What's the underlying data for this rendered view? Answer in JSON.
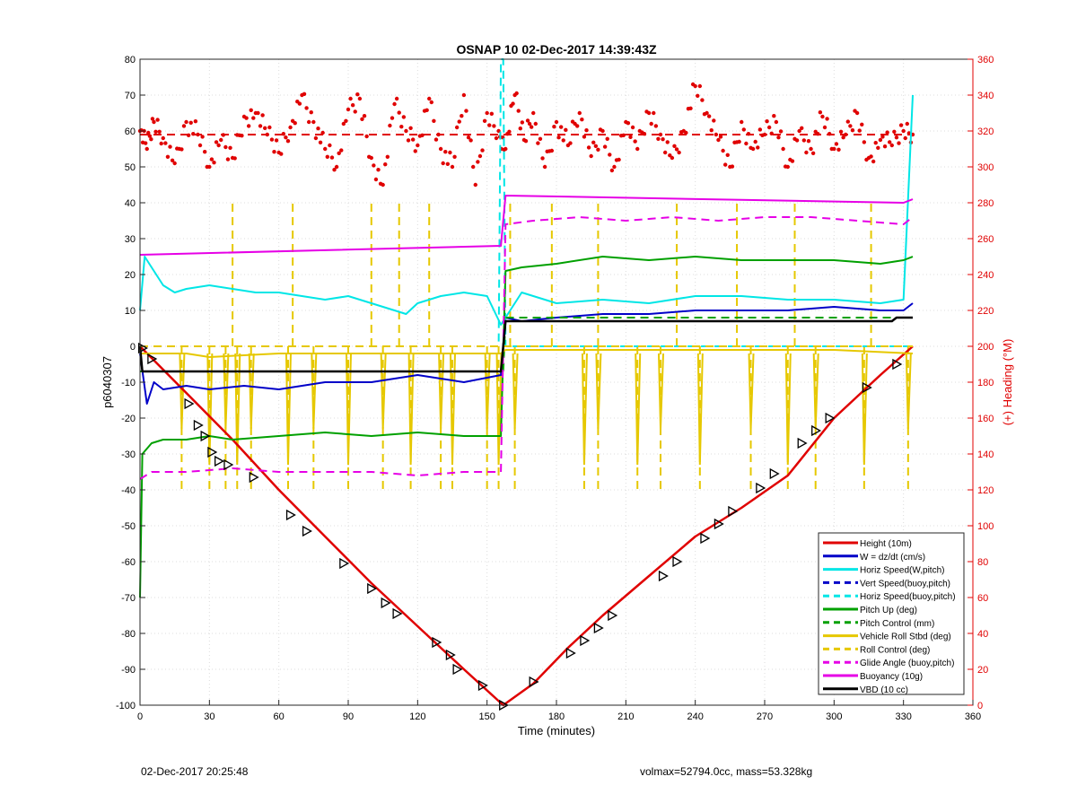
{
  "chart_data": {
    "type": "line",
    "title": "OSNAP 10 02-Dec-2017 14:39:43Z",
    "xlabel": "Time (minutes)",
    "ylabel": "p6040307",
    "y2label": "(+) Heading (°M)",
    "xlim": [
      0,
      360
    ],
    "ylim": [
      -100,
      80
    ],
    "y2lim": [
      0,
      360
    ],
    "xticks": [
      0,
      30,
      60,
      90,
      120,
      150,
      180,
      210,
      240,
      270,
      300,
      330,
      360
    ],
    "yticks": [
      -100,
      -90,
      -80,
      -70,
      -60,
      -50,
      -40,
      -30,
      -20,
      -10,
      0,
      10,
      20,
      30,
      40,
      50,
      60,
      70,
      80
    ],
    "y2ticks": [
      0,
      20,
      40,
      60,
      80,
      100,
      120,
      140,
      160,
      180,
      200,
      220,
      240,
      260,
      280,
      300,
      320,
      340,
      360
    ],
    "grid": true,
    "legend_location": "bottom-right",
    "series": [
      {
        "name": "Height (10m)",
        "color": "#e00000",
        "style": "solid",
        "x": [
          0,
          20,
          40,
          60,
          80,
          100,
          120,
          140,
          157,
          170,
          185,
          200,
          220,
          240,
          260,
          280,
          300,
          320,
          334
        ],
        "y": [
          0,
          -13,
          -26,
          -40,
          -53,
          -66,
          -78,
          -90,
          -100,
          -94,
          -84,
          -75,
          -64,
          -53,
          -45,
          -36,
          -20,
          -8,
          0
        ]
      },
      {
        "name": "W = dz/dt (cm/s)",
        "color": "#0000c8",
        "style": "solid",
        "x": [
          0,
          3,
          6,
          10,
          20,
          30,
          45,
          60,
          80,
          100,
          120,
          130,
          140,
          156,
          158,
          165,
          180,
          200,
          220,
          240,
          260,
          280,
          300,
          320,
          330,
          334
        ],
        "y": [
          -2,
          -16,
          -10,
          -12,
          -11,
          -12,
          -11,
          -12,
          -10,
          -10,
          -8,
          -9,
          -10,
          -8,
          8,
          7,
          8,
          9,
          9,
          10,
          10,
          10,
          11,
          10,
          10,
          12
        ]
      },
      {
        "name": "Horiz Speed(W,pitch)",
        "color": "#00e6e6",
        "style": "solid",
        "x": [
          0,
          2,
          5,
          10,
          15,
          20,
          30,
          40,
          50,
          60,
          70,
          80,
          90,
          100,
          110,
          115,
          120,
          130,
          140,
          150,
          156,
          158,
          165,
          180,
          200,
          220,
          240,
          260,
          280,
          300,
          320,
          330,
          334
        ],
        "y": [
          10,
          25,
          22,
          17,
          15,
          16,
          17,
          16,
          15,
          15,
          14,
          13,
          14,
          12,
          10,
          9,
          12,
          14,
          15,
          14,
          6,
          8,
          15,
          12,
          13,
          12,
          14,
          14,
          13,
          13,
          12,
          13,
          70
        ]
      },
      {
        "name": "Vert Speed(buoy,pitch)",
        "color": "#0000c8",
        "style": "dash",
        "x": [],
        "y": []
      },
      {
        "name": "Horiz Speed(buoy,pitch)",
        "color": "#00e6e6",
        "style": "dash",
        "x": [
          0,
          155,
          156,
          157,
          158,
          160,
          334
        ],
        "y": [
          0,
          0,
          80,
          80,
          0,
          0,
          0
        ]
      },
      {
        "name": "Pitch Up (deg)",
        "color": "#00a000",
        "style": "solid",
        "x": [
          0,
          1,
          5,
          10,
          20,
          30,
          40,
          60,
          80,
          100,
          120,
          140,
          156,
          158,
          165,
          180,
          200,
          220,
          240,
          260,
          280,
          300,
          320,
          330,
          334
        ],
        "y": [
          -70,
          -30,
          -27,
          -26,
          -26,
          -25,
          -26,
          -25,
          -24,
          -25,
          -24,
          -25,
          -25,
          21,
          22,
          23,
          25,
          24,
          25,
          24,
          24,
          24,
          23,
          24,
          25
        ]
      },
      {
        "name": "Pitch Control (mm)",
        "color": "#00a000",
        "style": "dash",
        "x": [
          0,
          157,
          158,
          334
        ],
        "y": [
          -7,
          -7,
          8,
          8
        ]
      },
      {
        "name": "Vehicle Roll Stbd (deg)",
        "color": "#e6c800",
        "style": "solid",
        "x": [
          0,
          10,
          20,
          30,
          60,
          90,
          120,
          150,
          156,
          158,
          180,
          210,
          240,
          270,
          300,
          334
        ],
        "y": [
          -2,
          -2,
          -2,
          -3,
          -2,
          -2,
          -2,
          -2,
          -2,
          -1,
          -1,
          -1,
          -1,
          -1,
          -1,
          -2
        ]
      },
      {
        "name": "Roll Control (deg)",
        "color": "#e6c800",
        "style": "dash",
        "x": [
          0,
          334
        ],
        "y": [
          0,
          0
        ]
      },
      {
        "name": "Glide Angle (buoy,pitch)",
        "color": "#e600e6",
        "style": "dash",
        "x": [
          0,
          5,
          20,
          40,
          60,
          80,
          100,
          120,
          140,
          156,
          158,
          170,
          190,
          210,
          230,
          250,
          270,
          290,
          310,
          330,
          334
        ],
        "y": [
          -37,
          -35,
          -35,
          -34,
          -35,
          -35,
          -35,
          -36,
          -35,
          -35,
          34,
          35,
          36,
          35,
          36,
          35,
          36,
          36,
          35,
          34,
          36
        ]
      },
      {
        "name": "Buoyancy (10g)",
        "color": "#e600e6",
        "style": "solid",
        "x": [
          0,
          156,
          158,
          330,
          334
        ],
        "y": [
          25.5,
          28,
          42,
          40,
          41
        ]
      },
      {
        "name": "VBD (10 cc)",
        "color": "#000000",
        "style": "solid",
        "x": [
          0,
          1,
          156,
          158,
          325,
          327,
          334
        ],
        "y": [
          0,
          -7,
          -7,
          7,
          7,
          8,
          8
        ]
      }
    ],
    "heading": {
      "label": "Heading (°M)",
      "color": "#e00000",
      "mean_line": 318,
      "x": [
        0,
        3,
        6,
        10,
        15,
        20,
        25,
        30,
        35,
        40,
        45,
        50,
        55,
        60,
        65,
        70,
        75,
        80,
        85,
        90,
        95,
        100,
        105,
        110,
        115,
        120,
        125,
        130,
        135,
        140,
        145,
        150,
        155,
        158,
        162,
        166,
        170,
        175,
        180,
        185,
        190,
        195,
        200,
        205,
        210,
        215,
        220,
        225,
        230,
        235,
        240,
        245,
        250,
        255,
        260,
        265,
        270,
        275,
        280,
        285,
        290,
        295,
        300,
        305,
        310,
        315,
        320,
        325,
        330,
        334
      ],
      "y": [
        320,
        310,
        325,
        316,
        302,
        325,
        318,
        300,
        315,
        305,
        328,
        330,
        318,
        308,
        322,
        340,
        325,
        310,
        300,
        332,
        338,
        305,
        290,
        335,
        320,
        312,
        338,
        310,
        300,
        340,
        290,
        330,
        320,
        310,
        340,
        315,
        330,
        300,
        325,
        312,
        330,
        306,
        320,
        300,
        325,
        310,
        330,
        318,
        305,
        320,
        345,
        330,
        315,
        300,
        325,
        310,
        318,
        325,
        300,
        320,
        310,
        328,
        310,
        318,
        330,
        305,
        315,
        312,
        320,
        318
      ]
    },
    "markers": {
      "x": [
        1,
        5,
        21,
        25,
        28,
        31,
        34,
        38,
        49,
        65,
        72,
        88,
        100,
        106,
        111,
        128,
        134,
        137,
        148,
        157,
        170,
        186,
        192,
        198,
        204,
        226,
        232,
        244,
        250,
        256,
        268,
        274,
        286,
        292,
        298,
        314,
        327
      ],
      "y": [
        -0.5,
        -3.5,
        -16,
        -22,
        -25,
        -29.5,
        -32,
        -33,
        -36.5,
        -47,
        -51.5,
        -60.5,
        -67.5,
        -71.5,
        -74.5,
        -82.5,
        -86,
        -90,
        -94.5,
        -100,
        -93.5,
        -85.5,
        -82,
        -78.5,
        -75,
        -64,
        -60,
        -53.5,
        -49.5,
        -46,
        -39.5,
        -35.5,
        -27,
        -23.5,
        -20,
        -11.5,
        -5
      ]
    },
    "roll_spikes": {
      "up": [
        40,
        66,
        100,
        112,
        125,
        160,
        178,
        198,
        232,
        258,
        283,
        316
      ],
      "down": [
        18,
        30,
        37,
        42,
        48,
        64,
        75,
        90,
        105,
        117,
        130,
        135,
        150,
        155,
        162,
        192,
        198,
        215,
        225,
        242,
        264,
        280,
        292,
        313,
        332
      ]
    },
    "legend": [
      "Height (10m)",
      "W = dz/dt (cm/s)",
      "Horiz Speed(W,pitch)",
      "Vert Speed(buoy,pitch)",
      "Horiz Speed(buoy,pitch)",
      "Pitch Up (deg)",
      "Pitch Control (mm)",
      "Vehicle Roll Stbd (deg)",
      "Roll Control (deg)",
      "Glide Angle (buoy,pitch)",
      "Buoyancy (10g)",
      "VBD (10 cc)"
    ]
  },
  "footer": {
    "left": "02-Dec-2017 20:25:48",
    "right": "volmax=52794.0cc, mass=53.328kg"
  }
}
